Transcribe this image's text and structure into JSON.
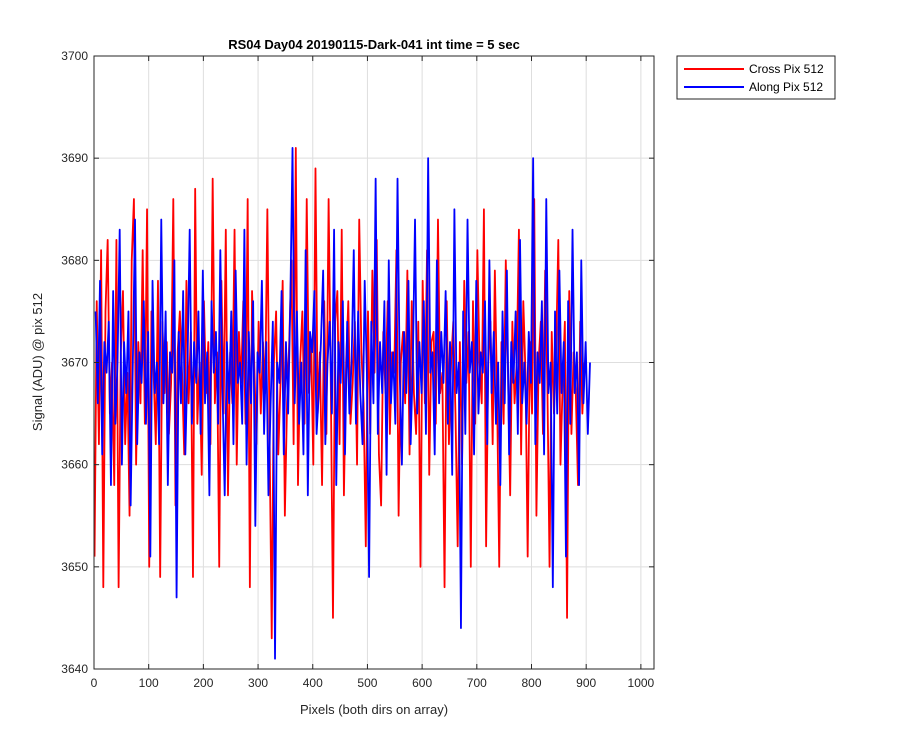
{
  "chart_data": {
    "type": "line",
    "title": "RS04 Day04 20190115-Dark-041 int time = 5 sec",
    "xlabel": "Pixels (both dirs on array)",
    "ylabel": "Signal (ADU) @ pix 512",
    "xlim": [
      0,
      1024
    ],
    "ylim": [
      3640,
      3700
    ],
    "xticks": [
      0,
      100,
      200,
      300,
      400,
      500,
      600,
      700,
      800,
      900,
      1000
    ],
    "yticks": [
      3640,
      3650,
      3660,
      3670,
      3680,
      3690,
      3700
    ],
    "grid": true,
    "legend_position": "outside-top-right",
    "series": [
      {
        "name": "Cross Pix 512",
        "color": "#ff0000",
        "x_start": 1,
        "x_step": 4,
        "values": [
          3651,
          3676,
          3662,
          3681,
          3648,
          3675,
          3682,
          3665,
          3670,
          3658,
          3682,
          3648,
          3671,
          3677,
          3662,
          3669,
          3655,
          3680,
          3686,
          3660,
          3672,
          3666,
          3681,
          3664,
          3685,
          3650,
          3675,
          3669,
          3662,
          3678,
          3649,
          3674,
          3667,
          3672,
          3663,
          3668,
          3686,
          3656,
          3671,
          3675,
          3669,
          3661,
          3678,
          3666,
          3673,
          3649,
          3687,
          3664,
          3670,
          3659,
          3676,
          3667,
          3672,
          3662,
          3688,
          3666,
          3671,
          3650,
          3678,
          3665,
          3683,
          3657,
          3671,
          3666,
          3683,
          3660,
          3673,
          3668,
          3676,
          3664,
          3686,
          3648,
          3677,
          3670,
          3662,
          3674,
          3665,
          3672,
          3667,
          3685,
          3663,
          3643,
          3670,
          3675,
          3661,
          3668,
          3678,
          3655,
          3666,
          3672,
          3680,
          3662,
          3691,
          3658,
          3670,
          3675,
          3664,
          3686,
          3667,
          3672,
          3660,
          3689,
          3665,
          3671,
          3658,
          3676,
          3663,
          3686,
          3668,
          3645,
          3674,
          3677,
          3662,
          3683,
          3657,
          3670,
          3676,
          3664,
          3668,
          3674,
          3660,
          3684,
          3671,
          3666,
          3652,
          3675,
          3663,
          3679,
          3669,
          3682,
          3661,
          3656,
          3673,
          3667,
          3676,
          3663,
          3671,
          3669,
          3681,
          3655,
          3670,
          3673,
          3666,
          3679,
          3661,
          3676,
          3667,
          3663,
          3674,
          3650,
          3678,
          3666,
          3681,
          3659,
          3672,
          3673,
          3664,
          3684,
          3667,
          3669,
          3648,
          3676,
          3662,
          3670,
          3674,
          3665,
          3652,
          3672,
          3660,
          3678,
          3668,
          3673,
          3650,
          3676,
          3664,
          3681,
          3670,
          3666,
          3685,
          3652,
          3670,
          3674,
          3662,
          3679,
          3667,
          3650,
          3672,
          3664,
          3680,
          3669,
          3657,
          3674,
          3666,
          3670,
          3683,
          3661,
          3676,
          3669,
          3651,
          3672,
          3665,
          3686,
          3655,
          3670,
          3674,
          3663,
          3679,
          3668,
          3650,
          3673,
          3665,
          3671,
          3682,
          3660,
          3668,
          3674,
          3645,
          3677,
          3663,
          3671,
          3667,
          3658,
          3674,
          3665,
          3670
        ]
      },
      {
        "name": "Along Pix 512",
        "color": "#0000ff",
        "x_start": 3,
        "x_step": 4,
        "values": [
          3675,
          3666,
          3678,
          3661,
          3672,
          3669,
          3674,
          3658,
          3677,
          3664,
          3670,
          3683,
          3660,
          3672,
          3667,
          3675,
          3656,
          3670,
          3684,
          3662,
          3671,
          3668,
          3676,
          3664,
          3673,
          3651,
          3678,
          3667,
          3670,
          3662,
          3684,
          3666,
          3675,
          3658,
          3671,
          3669,
          3680,
          3647,
          3673,
          3666,
          3677,
          3661,
          3670,
          3683,
          3664,
          3672,
          3668,
          3675,
          3663,
          3679,
          3666,
          3671,
          3657,
          3676,
          3669,
          3673,
          3664,
          3681,
          3667,
          3657,
          3672,
          3666,
          3675,
          3662,
          3679,
          3668,
          3670,
          3664,
          3683,
          3660,
          3673,
          3666,
          3676,
          3654,
          3671,
          3669,
          3678,
          3663,
          3672,
          3657,
          3666,
          3674,
          3641,
          3670,
          3668,
          3677,
          3661,
          3672,
          3665,
          3676,
          3691,
          3666,
          3675,
          3664,
          3670,
          3661,
          3681,
          3657,
          3673,
          3671,
          3677,
          3663,
          3667,
          3672,
          3679,
          3662,
          3670,
          3674,
          3665,
          3683,
          3658,
          3672,
          3668,
          3676,
          3661,
          3674,
          3665,
          3670,
          3681,
          3664,
          3675,
          3667,
          3662,
          3678,
          3669,
          3649,
          3674,
          3666,
          3688,
          3663,
          3672,
          3667,
          3676,
          3659,
          3680,
          3666,
          3671,
          3664,
          3688,
          3669,
          3660,
          3673,
          3667,
          3678,
          3662,
          3670,
          3684,
          3665,
          3672,
          3667,
          3676,
          3663,
          3690,
          3669,
          3671,
          3661,
          3680,
          3666,
          3673,
          3668,
          3677,
          3664,
          3672,
          3659,
          3685,
          3667,
          3670,
          3644,
          3675,
          3663,
          3684,
          3669,
          3672,
          3661,
          3678,
          3665,
          3671,
          3669,
          3676,
          3662,
          3680,
          3667,
          3673,
          3664,
          3670,
          3658,
          3675,
          3666,
          3679,
          3661,
          3672,
          3668,
          3675,
          3663,
          3682,
          3666,
          3670,
          3664,
          3673,
          3668,
          3690,
          3662,
          3671,
          3668,
          3676,
          3661,
          3686,
          3667,
          3670,
          3648,
          3675,
          3665,
          3679,
          3667,
          3672,
          3651,
          3676,
          3664,
          3683,
          3667,
          3671,
          3658,
          3680,
          3666,
          3672,
          3663,
          3670
        ]
      }
    ]
  }
}
